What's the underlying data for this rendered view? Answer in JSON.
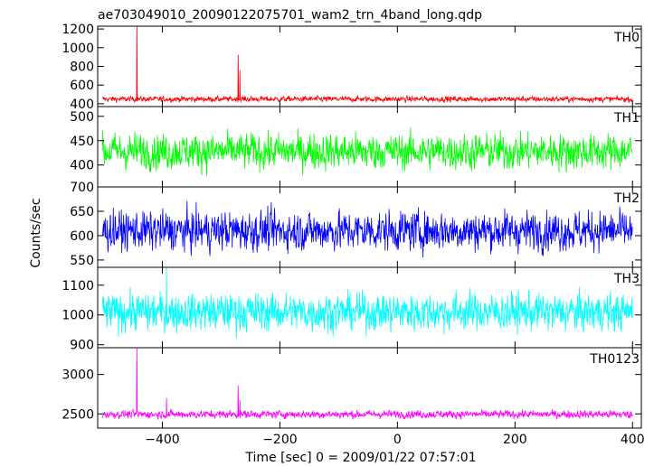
{
  "chart_data": {
    "type": "line",
    "title": "ae703049010_20090122075701_wam2_trn_4band_long.qdp",
    "xlabel": "Time [sec] 0 = 2009/01/22 07:57:01",
    "ylabel": "Counts/sec",
    "xlim": [
      -510,
      415
    ],
    "x_ticks": [
      -400,
      -200,
      0,
      200,
      400
    ],
    "x_tick_labels": [
      "−400",
      "−200",
      "0",
      "200",
      "400"
    ],
    "grid": false,
    "panels": [
      {
        "name": "TH0",
        "color": "#ff0000",
        "ylim": [
          370,
          1230
        ],
        "y_ticks": [
          400,
          600,
          800,
          1000,
          1200
        ],
        "baseline": 450,
        "noise": 18,
        "x_range": [
          -502,
          400
        ],
        "spikes": [
          [
            -443,
            1225
          ],
          [
            -271,
            925
          ],
          [
            -268,
            760
          ]
        ]
      },
      {
        "name": "TH1",
        "color": "#00ff00",
        "ylim": [
          355,
          520
        ],
        "y_ticks": [
          400,
          450,
          500
        ],
        "baseline": 428,
        "noise": 22,
        "x_range": [
          -502,
          400
        ],
        "spikes": []
      },
      {
        "name": "TH2",
        "color": "#0000ff",
        "ylim": [
          535,
          700
        ],
        "y_ticks": [
          550,
          600,
          650,
          700
        ],
        "baseline": 610,
        "noise": 24,
        "x_range": [
          -502,
          400
        ],
        "spikes": []
      },
      {
        "name": "TH3",
        "color": "#00ffff",
        "ylim": [
          890,
          1160
        ],
        "y_ticks": [
          900,
          1000,
          1100
        ],
        "baseline": 1010,
        "noise": 38,
        "x_range": [
          -502,
          400
        ],
        "spikes": [
          [
            -393,
            1160
          ]
        ]
      },
      {
        "name": "TH0123",
        "color": "#ff00ff",
        "ylim": [
          2320,
          3340
        ],
        "y_ticks": [
          2500,
          3000
        ],
        "baseline": 2495,
        "noise": 30,
        "x_range": [
          -502,
          400
        ],
        "spikes": [
          [
            -443,
            3330
          ],
          [
            -393,
            2700
          ],
          [
            -271,
            2860
          ],
          [
            -268,
            2680
          ]
        ]
      }
    ]
  }
}
